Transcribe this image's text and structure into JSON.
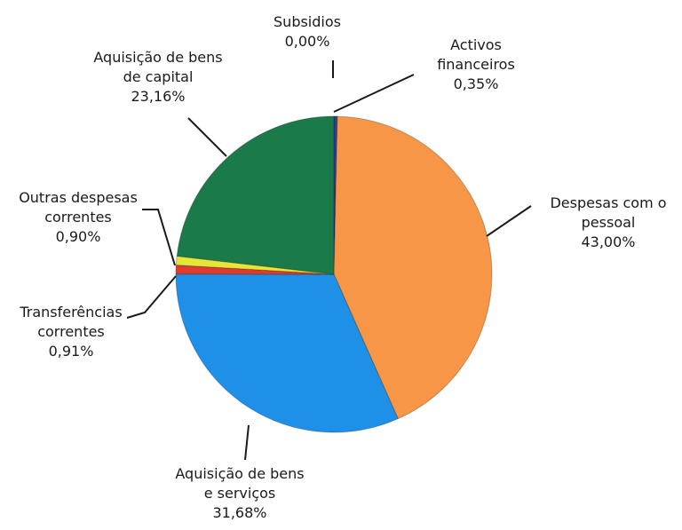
{
  "chart_data": {
    "type": "pie",
    "title": "",
    "unit": "%",
    "start_category": "Activos financeiros",
    "direction": "clockwise",
    "slices": [
      {
        "name_lines": [
          "Activos",
          "financeiros"
        ],
        "pct_label": "0,35%",
        "value": 0.35,
        "color": "#2e3f8f"
      },
      {
        "name_lines": [
          "Despesas com o",
          "pessoal"
        ],
        "pct_label": "43,00%",
        "value": 43.0,
        "color": "#f79646"
      },
      {
        "name_lines": [
          "Aquisição de bens",
          "e serviços"
        ],
        "pct_label": "31,68%",
        "value": 31.68,
        "color": "#1e90e8"
      },
      {
        "name_lines": [
          "Transferências",
          "correntes"
        ],
        "pct_label": "0,91%",
        "value": 0.91,
        "color": "#e03a2e"
      },
      {
        "name_lines": [
          "Outras despesas",
          "correntes"
        ],
        "pct_label": "0,90%",
        "value": 0.9,
        "color": "#e6e63a"
      },
      {
        "name_lines": [
          "Aquisição de bens",
          "de capital"
        ],
        "pct_label": "23,16%",
        "value": 23.16,
        "color": "#1a7a4a"
      },
      {
        "name_lines": [
          "Subsidios"
        ],
        "pct_label": "0,00%",
        "value": 0.0,
        "color": "#7f7f7f"
      }
    ]
  }
}
